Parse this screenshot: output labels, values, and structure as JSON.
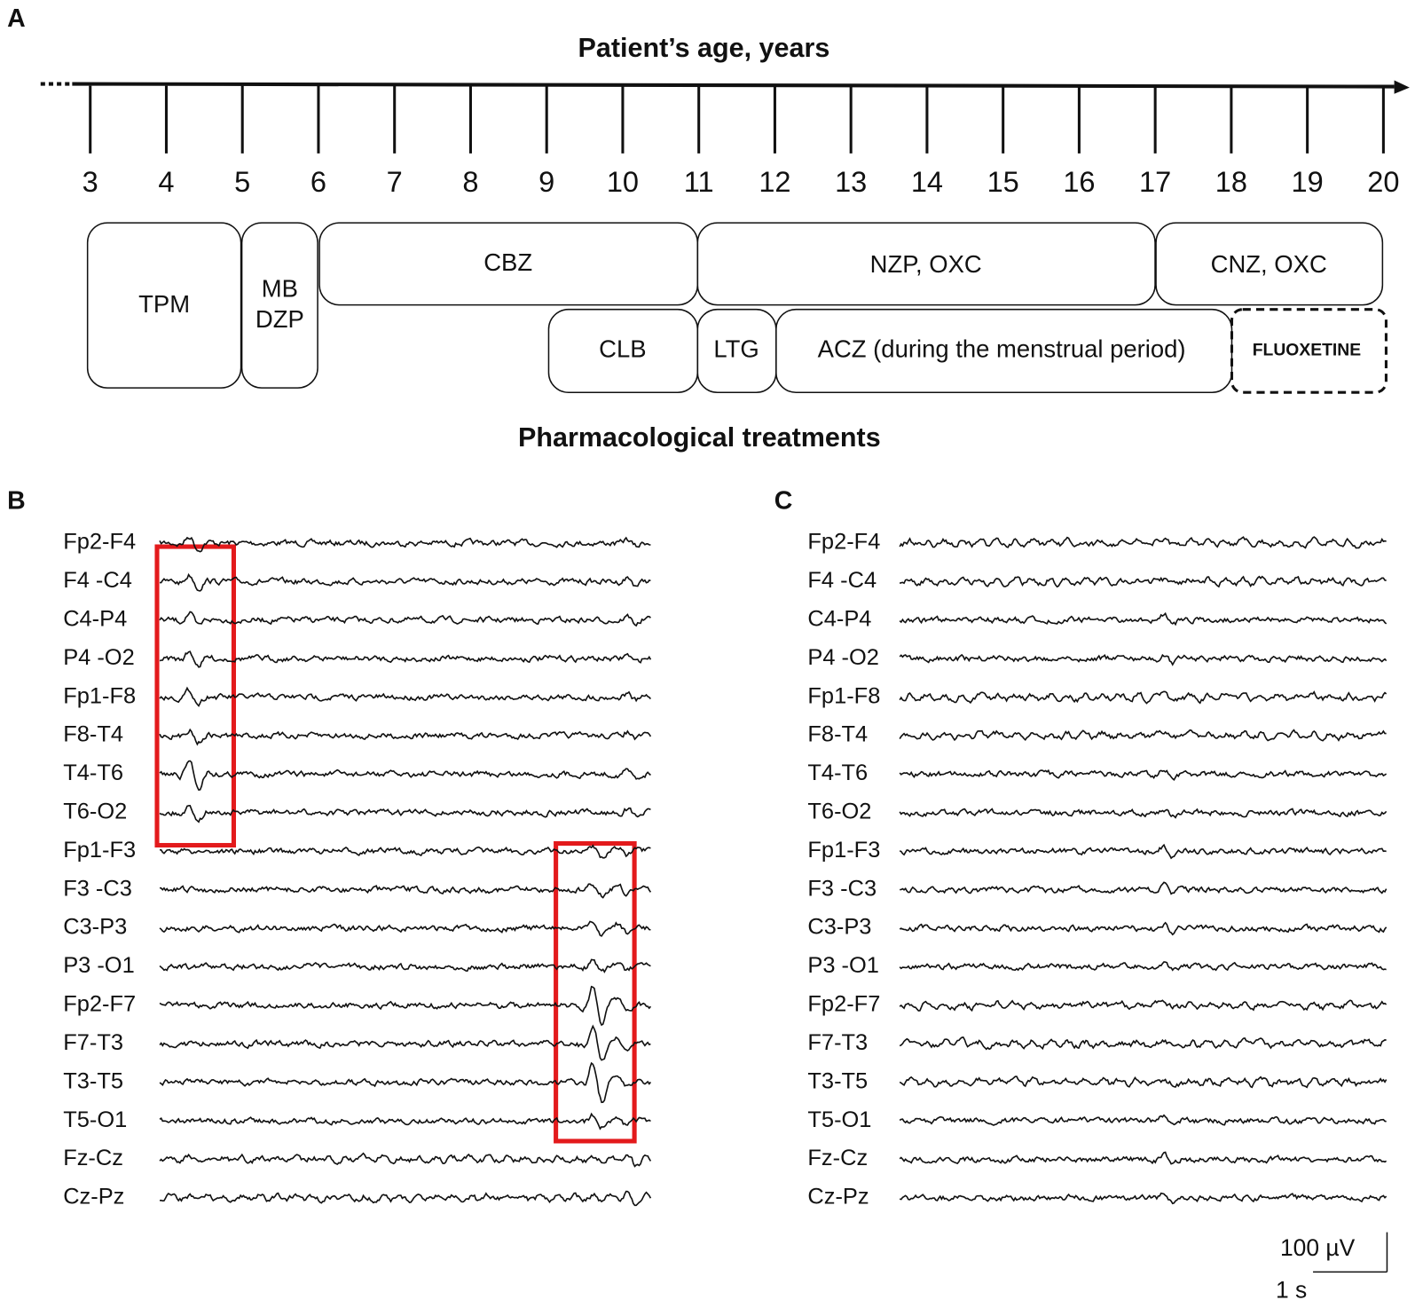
{
  "panels": {
    "a": "A",
    "b": "B",
    "c": "C"
  },
  "timeline": {
    "title": "Patient’s age, years",
    "ages": [
      3,
      4,
      5,
      6,
      7,
      8,
      9,
      10,
      11,
      12,
      13,
      14,
      15,
      16,
      17,
      18,
      19,
      20
    ]
  },
  "treatments": {
    "title": "Pharmacological treatments",
    "items": [
      "TPM",
      "MB",
      "DZP",
      "CBZ",
      "NZP, OXC",
      "CNZ, OXC",
      "CLB",
      "LTG",
      "ACZ (during the menstrual period)",
      "FLUOXETINE"
    ]
  },
  "eeg_b": {
    "channels": [
      "Fp2-F4",
      "F4 -C4",
      "C4-P4",
      "P4 -O2",
      "Fp1-F8",
      "F8-T4",
      "T4-T6",
      "T6-O2",
      "Fp1-F3",
      "F3 -C3",
      "C3-P3",
      "P3 -O1",
      "Fp2-F7",
      "F7-T3",
      "T3-T5",
      "T5-O1",
      "Fz-Cz",
      "Cz-Pz"
    ]
  },
  "eeg_c": {
    "channels": [
      "Fp2-F4",
      "F4 -C4",
      "C4-P4",
      "P4 -O2",
      "Fp1-F8",
      "F8-T4",
      "T4-T6",
      "T6-O2",
      "Fp1-F3",
      "F3 -C3",
      "C3-P3",
      "P3 -O1",
      "Fp2-F7",
      "F7-T3",
      "T3-T5",
      "T5-O1",
      "Fz-Cz",
      "Cz-Pz"
    ]
  },
  "scale_bar": {
    "amplitude": "100 µV",
    "time": "1 s"
  }
}
